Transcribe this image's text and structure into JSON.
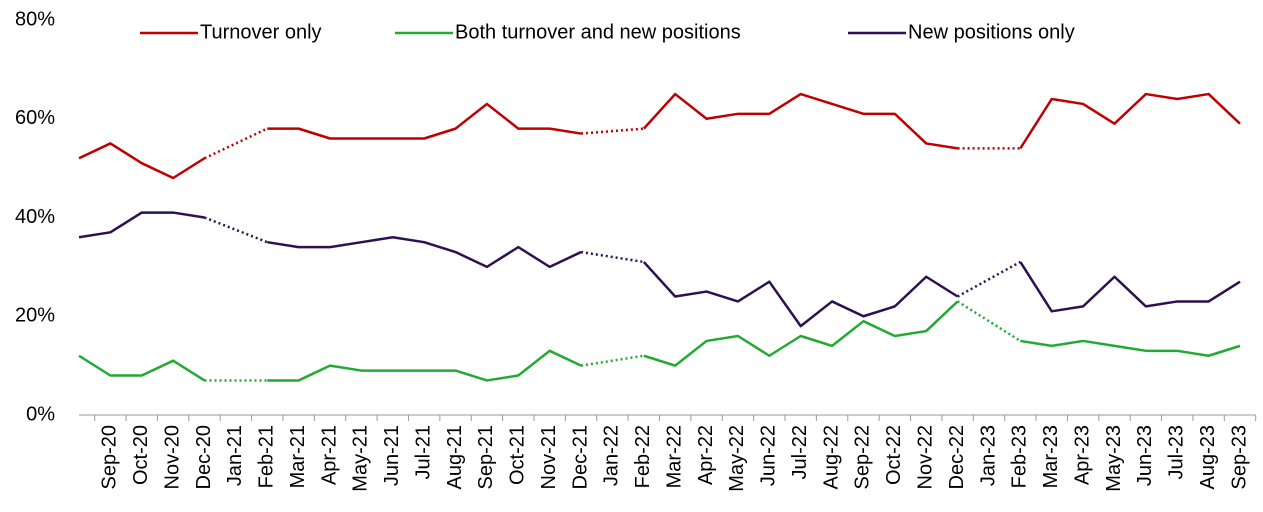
{
  "chart_data": {
    "type": "line",
    "categories": [
      null,
      "Sep-20",
      "Oct-20",
      "Nov-20",
      "Dec-20",
      "Jan-21",
      "Feb-21",
      "Mar-21",
      "Apr-21",
      "May-21",
      "Jun-21",
      "Jul-21",
      "Aug-21",
      "Sep-21",
      "Oct-21",
      "Nov-21",
      "Dec-21",
      "Jan-22",
      "Feb-22",
      "Mar-22",
      "Apr-22",
      "May-22",
      "Jun-22",
      "Jul-22",
      "Aug-22",
      "Sep-22",
      "Oct-22",
      "Nov-22",
      "Dec-22",
      "Jan-23",
      "Feb-23",
      "Mar-23",
      "Apr-23",
      "May-23",
      "Jun-23",
      "Jul-23",
      "Aug-23",
      "Sep-23"
    ],
    "series": [
      {
        "name": "Turnover only",
        "color": "#c00000",
        "values": [
          52,
          55,
          51,
          48,
          52,
          null,
          58,
          58,
          56,
          56,
          56,
          56,
          58,
          63,
          58,
          58,
          57,
          null,
          58,
          65,
          60,
          61,
          61,
          65,
          63,
          61,
          61,
          55,
          54,
          null,
          54,
          64,
          63,
          59,
          65,
          64,
          65,
          59
        ]
      },
      {
        "name": "Both turnover and new positions",
        "color": "#22aa33",
        "values": [
          12,
          8,
          8,
          11,
          7,
          null,
          7,
          7,
          10,
          9,
          9,
          9,
          9,
          7,
          8,
          13,
          10,
          null,
          12,
          10,
          15,
          16,
          12,
          16,
          14,
          19,
          16,
          17,
          23,
          null,
          15,
          14,
          15,
          14,
          13,
          13,
          12,
          14
        ]
      },
      {
        "name": "New positions only",
        "color": "#2e0f4f",
        "values": [
          36,
          37,
          41,
          41,
          40,
          null,
          35,
          34,
          34,
          35,
          36,
          35,
          33,
          30,
          34,
          30,
          33,
          null,
          31,
          24,
          25,
          23,
          27,
          18,
          23,
          20,
          22,
          28,
          24,
          null,
          31,
          21,
          22,
          28,
          22,
          23,
          23,
          27
        ]
      }
    ],
    "ylim": [
      0,
      80
    ],
    "yticks": [
      {
        "value": 0,
        "label": "0%"
      },
      {
        "value": 20,
        "label": "20%"
      },
      {
        "value": 40,
        "label": "40%"
      },
      {
        "value": 60,
        "label": "60%"
      },
      {
        "value": 80,
        "label": "80%"
      }
    ],
    "grid": false,
    "gap_style": "dotted",
    "legend": "top"
  }
}
